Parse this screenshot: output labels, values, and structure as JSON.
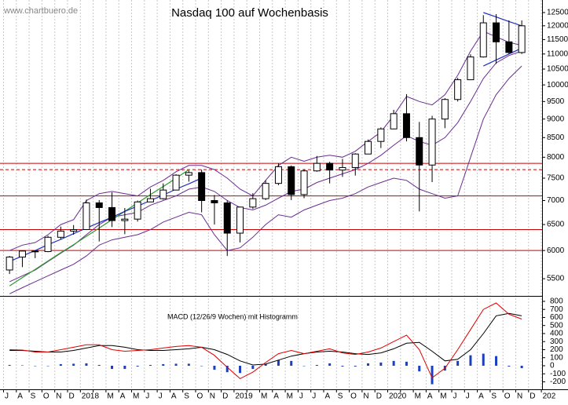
{
  "chart_data": [
    {
      "type": "candlestick",
      "title": "Nasdaq 100 auf Wochenbasis",
      "watermark": "www.chartbuero.de",
      "categories": [
        "J",
        "A",
        "S",
        "O",
        "N",
        "D",
        "2018",
        null,
        "M",
        "A",
        "M",
        "J",
        "J",
        "A",
        "S",
        "O",
        "N",
        "D",
        "2019",
        null,
        "M",
        "A",
        "M",
        "J",
        "J",
        "A",
        "S",
        "O",
        "N",
        "D",
        "2020",
        null,
        "M",
        "A",
        "M",
        "J",
        "J",
        "A",
        "S",
        "O",
        "N",
        "D",
        "202"
      ],
      "open": [
        5650,
        5880,
        5990,
        5980,
        6250,
        6370,
        6400,
        6950,
        6850,
        6580,
        6610,
        6970,
        7040,
        7230,
        7570,
        7630,
        7000,
        6950,
        6330,
        6860,
        7040,
        7380,
        7770,
        7130,
        7670,
        7850,
        7690,
        7750,
        8080,
        8400,
        8730,
        9150,
        8500,
        7810,
        9000,
        9560,
        10160,
        10900,
        12110,
        11420,
        11050,
        null,
        null
      ],
      "high": [
        5900,
        6000,
        6000,
        6280,
        6460,
        6490,
        7020,
        7010,
        7180,
        6840,
        7000,
        7260,
        7380,
        7590,
        7680,
        7700,
        7120,
        7000,
        6870,
        7160,
        7450,
        7850,
        7800,
        7710,
        8030,
        7890,
        7960,
        8100,
        8450,
        8770,
        9260,
        9720,
        8920,
        9090,
        9600,
        10220,
        10990,
        12400,
        12440,
        12200,
        12200,
        null,
        null
      ],
      "low": [
        5580,
        5700,
        5860,
        5970,
        6210,
        6300,
        6390,
        6170,
        6450,
        6310,
        6560,
        6970,
        7020,
        7230,
        7420,
        6750,
        6500,
        5900,
        6150,
        6820,
        7010,
        7340,
        7010,
        7050,
        7650,
        7380,
        7530,
        7560,
        8080,
        8230,
        8720,
        8400,
        6770,
        7410,
        8750,
        9500,
        10150,
        10880,
        10670,
        11000,
        11000,
        null,
        null
      ],
      "close": [
        5880,
        5990,
        5980,
        6250,
        6370,
        6400,
        6950,
        6850,
        6580,
        6610,
        6970,
        7040,
        7230,
        7570,
        7630,
        7000,
        6950,
        6330,
        6860,
        7040,
        7380,
        7770,
        7130,
        7670,
        7850,
        7690,
        7750,
        8080,
        8400,
        8730,
        9150,
        8500,
        7810,
        9000,
        9560,
        10160,
        10900,
        12110,
        11420,
        11050,
        12000,
        null,
        null
      ],
      "up_color": "#ffffff",
      "down_color": "#000000",
      "bands": [
        {
          "color": "#6a2c91",
          "values": [
            6000,
            6100,
            6150,
            6300,
            6500,
            6600,
            7000,
            7150,
            7200,
            7150,
            7100,
            7300,
            7450,
            7650,
            7800,
            7800,
            7700,
            7500,
            7250,
            7100,
            7450,
            7800,
            8000,
            7900,
            8000,
            8050,
            8000,
            8150,
            8400,
            8650,
            9100,
            9650,
            9500,
            9400,
            9700,
            10300,
            11100,
            11800,
            11600,
            11400,
            11300,
            null,
            null
          ]
        },
        {
          "color": "#6a2c91",
          "values": [
            5450,
            5550,
            5650,
            5800,
            5950,
            6100,
            6300,
            6500,
            6650,
            6700,
            6750,
            6900,
            7000,
            7100,
            7250,
            7300,
            7200,
            7000,
            6850,
            6800,
            6900,
            7050,
            7200,
            7250,
            7400,
            7500,
            7600,
            7700,
            7850,
            8050,
            8300,
            8550,
            8400,
            8300,
            8500,
            8900,
            9500,
            10200,
            10700,
            10950,
            11100,
            null,
            null
          ]
        },
        {
          "color": "#6a2c91",
          "values": [
            5250,
            5350,
            5450,
            5550,
            5650,
            5750,
            5900,
            6100,
            6200,
            6250,
            6300,
            6400,
            6550,
            6650,
            6750,
            6700,
            6300,
            6000,
            6050,
            6250,
            6500,
            6700,
            6650,
            6800,
            6900,
            7000,
            7050,
            7150,
            7300,
            7400,
            7500,
            7450,
            7250,
            7150,
            7050,
            7100,
            8000,
            9000,
            9700,
            10200,
            10600,
            null,
            null
          ]
        }
      ],
      "trendlines": [
        {
          "color": "#2e9a2e",
          "values": [
            5380,
            5520,
            5660,
            5810,
            5960,
            6110,
            6270,
            6430,
            6600,
            6770,
            6950,
            7130,
            7310,
            7500,
            7700,
            null,
            null,
            null,
            null,
            null,
            null,
            null,
            null,
            null,
            null,
            null,
            null,
            null,
            null,
            null,
            null,
            null,
            null,
            null,
            null,
            null,
            null,
            null,
            null,
            null,
            null,
            null,
            null
          ]
        },
        {
          "color": "#2030c0",
          "values": [
            5800,
            5900,
            6000,
            6110,
            6210,
            6320,
            6430,
            6540,
            6650,
            6770,
            6880,
            7000,
            7120,
            7250,
            7370,
            7500,
            null,
            null,
            null,
            null,
            null,
            null,
            null,
            null,
            null,
            null,
            null,
            null,
            null,
            null,
            null,
            null,
            null,
            null,
            null,
            null,
            null,
            null,
            null,
            null,
            null,
            null,
            null
          ]
        },
        {
          "color": "#2030c0",
          "values": [
            null,
            null,
            null,
            null,
            null,
            null,
            null,
            null,
            null,
            null,
            null,
            null,
            null,
            null,
            null,
            null,
            null,
            null,
            null,
            null,
            null,
            null,
            null,
            null,
            null,
            null,
            null,
            null,
            null,
            null,
            null,
            null,
            null,
            null,
            null,
            null,
            null,
            12500,
            12330,
            12160,
            12000,
            null,
            null
          ]
        },
        {
          "color": "#2030c0",
          "values": [
            null,
            null,
            null,
            null,
            null,
            null,
            null,
            null,
            null,
            null,
            null,
            null,
            null,
            null,
            null,
            null,
            null,
            null,
            null,
            null,
            null,
            null,
            null,
            null,
            null,
            null,
            null,
            null,
            null,
            null,
            null,
            null,
            null,
            null,
            null,
            null,
            null,
            10600,
            10800,
            11000,
            11200,
            null,
            null
          ]
        }
      ],
      "hlines": [
        {
          "value": 6000,
          "color": "#cc0000",
          "style": "solid"
        },
        {
          "value": 6400,
          "color": "#cc0000",
          "style": "solid"
        },
        {
          "value": 7100,
          "color": "#cc0000",
          "style": "solid"
        },
        {
          "value": 7700,
          "color": "#cc0000",
          "style": "dashed"
        },
        {
          "value": 7850,
          "color": "#cc0000",
          "style": "solid"
        }
      ],
      "log_scale": true,
      "ylim": [
        5216,
        12837
      ],
      "yticks": [
        5500,
        6000,
        6500,
        7000,
        7500,
        8000,
        8500,
        9000,
        9500,
        10000,
        10500,
        11000,
        11500,
        12000,
        12500
      ],
      "grid": true
    },
    {
      "type": "macd",
      "title": "MACD (12/26/9 Wochen) mit Histogramm",
      "series": [
        {
          "color": "#000000",
          "values": [
            190,
            190,
            180,
            170,
            170,
            190,
            220,
            250,
            250,
            230,
            200,
            190,
            190,
            200,
            210,
            230,
            200,
            140,
            60,
            10,
            20,
            70,
            120,
            150,
            170,
            180,
            170,
            150,
            140,
            160,
            210,
            280,
            290,
            180,
            60,
            80,
            200,
            400,
            620,
            650,
            620,
            null,
            null
          ]
        },
        {
          "color": "#e00000",
          "values": [
            200,
            195,
            170,
            170,
            200,
            230,
            260,
            260,
            200,
            180,
            190,
            200,
            220,
            240,
            250,
            230,
            130,
            -20,
            -160,
            -80,
            40,
            150,
            190,
            150,
            180,
            210,
            160,
            140,
            170,
            220,
            300,
            380,
            200,
            -150,
            -30,
            200,
            450,
            700,
            780,
            640,
            580,
            null,
            null
          ]
        }
      ],
      "histogram": {
        "color": "#1a3fbf",
        "values": [
          10,
          5,
          -5,
          0,
          20,
          25,
          30,
          10,
          -40,
          -40,
          -10,
          10,
          20,
          25,
          25,
          0,
          -50,
          -80,
          -90,
          -40,
          20,
          70,
          60,
          0,
          10,
          30,
          -10,
          -10,
          30,
          40,
          60,
          50,
          -70,
          -230,
          -60,
          60,
          130,
          150,
          120,
          -10,
          -30,
          null,
          null
        ]
      },
      "ylim": [
        -283,
        858
      ],
      "yticks": [
        -200,
        -100,
        0,
        100,
        200,
        300,
        400,
        500,
        600,
        700,
        800
      ]
    }
  ]
}
